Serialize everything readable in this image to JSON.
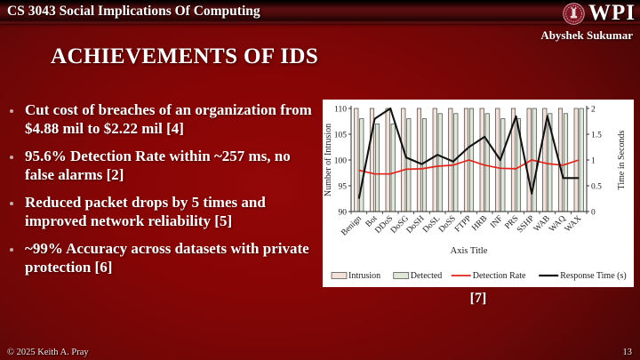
{
  "header": {
    "course_title": "CS 3043 Social Implications Of Computing",
    "logo_text": "WPI",
    "author": "Abyshek Sukumar"
  },
  "main": {
    "title": "ACHIEVEMENTS OF IDS",
    "bullets": [
      "Cut cost of breaches of an organization from $4.88 mil to $2.22 mil [4]",
      "95.6% Detection Rate within ~257 ms, no false alarms [2]",
      "Reduced packet drops by 5 times and improved network reliability [5]",
      "~99% Accuracy across datasets with private protection [6]"
    ],
    "citation": "[7]"
  },
  "footer": {
    "copyright": "© 2025 Keith A. Pray",
    "page_number": "13"
  },
  "theme": {
    "slide_background": "#870505",
    "text_color": "#ffffff"
  },
  "chart_data": {
    "type": "bar",
    "combo": "bars + lines, dual axis",
    "title": "",
    "xlabel": "Axis Title",
    "ylabel_left": "Number of Intrusion",
    "ylabel_right": "Time in Seconds",
    "ylim_left": [
      90,
      110
    ],
    "ylim_right": [
      0,
      2
    ],
    "yticks_left": [
      90,
      95,
      100,
      105,
      110
    ],
    "yticks_right": [
      "0",
      "0.5",
      "1",
      "1.5",
      "2"
    ],
    "grid": false,
    "legend_position": "bottom",
    "categories": [
      "Benign",
      "Bot",
      "DDoS",
      "DoSG",
      "DoSH",
      "DoSL",
      "DoSS",
      "FTPP",
      "HRB",
      "INF",
      "PRS",
      "SSHP",
      "WAB",
      "WAQ",
      "WAX"
    ],
    "series": [
      {
        "name": "Intrusion",
        "type": "bar",
        "axis": "left",
        "color": "#f2e1d8",
        "values": [
          110,
          110,
          110,
          110,
          110,
          110,
          110,
          110,
          110,
          110,
          110,
          110,
          110,
          110,
          110
        ]
      },
      {
        "name": "Detected",
        "type": "bar",
        "axis": "left",
        "color": "#dfe8d7",
        "values": [
          108,
          107,
          107,
          108,
          108,
          109,
          109,
          110,
          109,
          108,
          108,
          110,
          109,
          109,
          110
        ]
      },
      {
        "name": "Detection Rate",
        "type": "line",
        "axis": "right",
        "color": "#e3231a",
        "values": [
          0.8,
          0.73,
          0.73,
          0.82,
          0.83,
          0.88,
          0.9,
          1.0,
          0.9,
          0.84,
          0.83,
          1.0,
          0.93,
          0.9,
          1.0
        ]
      },
      {
        "name": "Response Time (s)",
        "type": "line",
        "axis": "right",
        "color": "#111111",
        "values": [
          0.25,
          1.8,
          2.0,
          1.05,
          0.92,
          1.1,
          0.97,
          1.25,
          1.45,
          1.0,
          1.85,
          0.35,
          1.85,
          0.65,
          0.65
        ]
      }
    ],
    "bar_outline_color": "#3f3f3f"
  }
}
